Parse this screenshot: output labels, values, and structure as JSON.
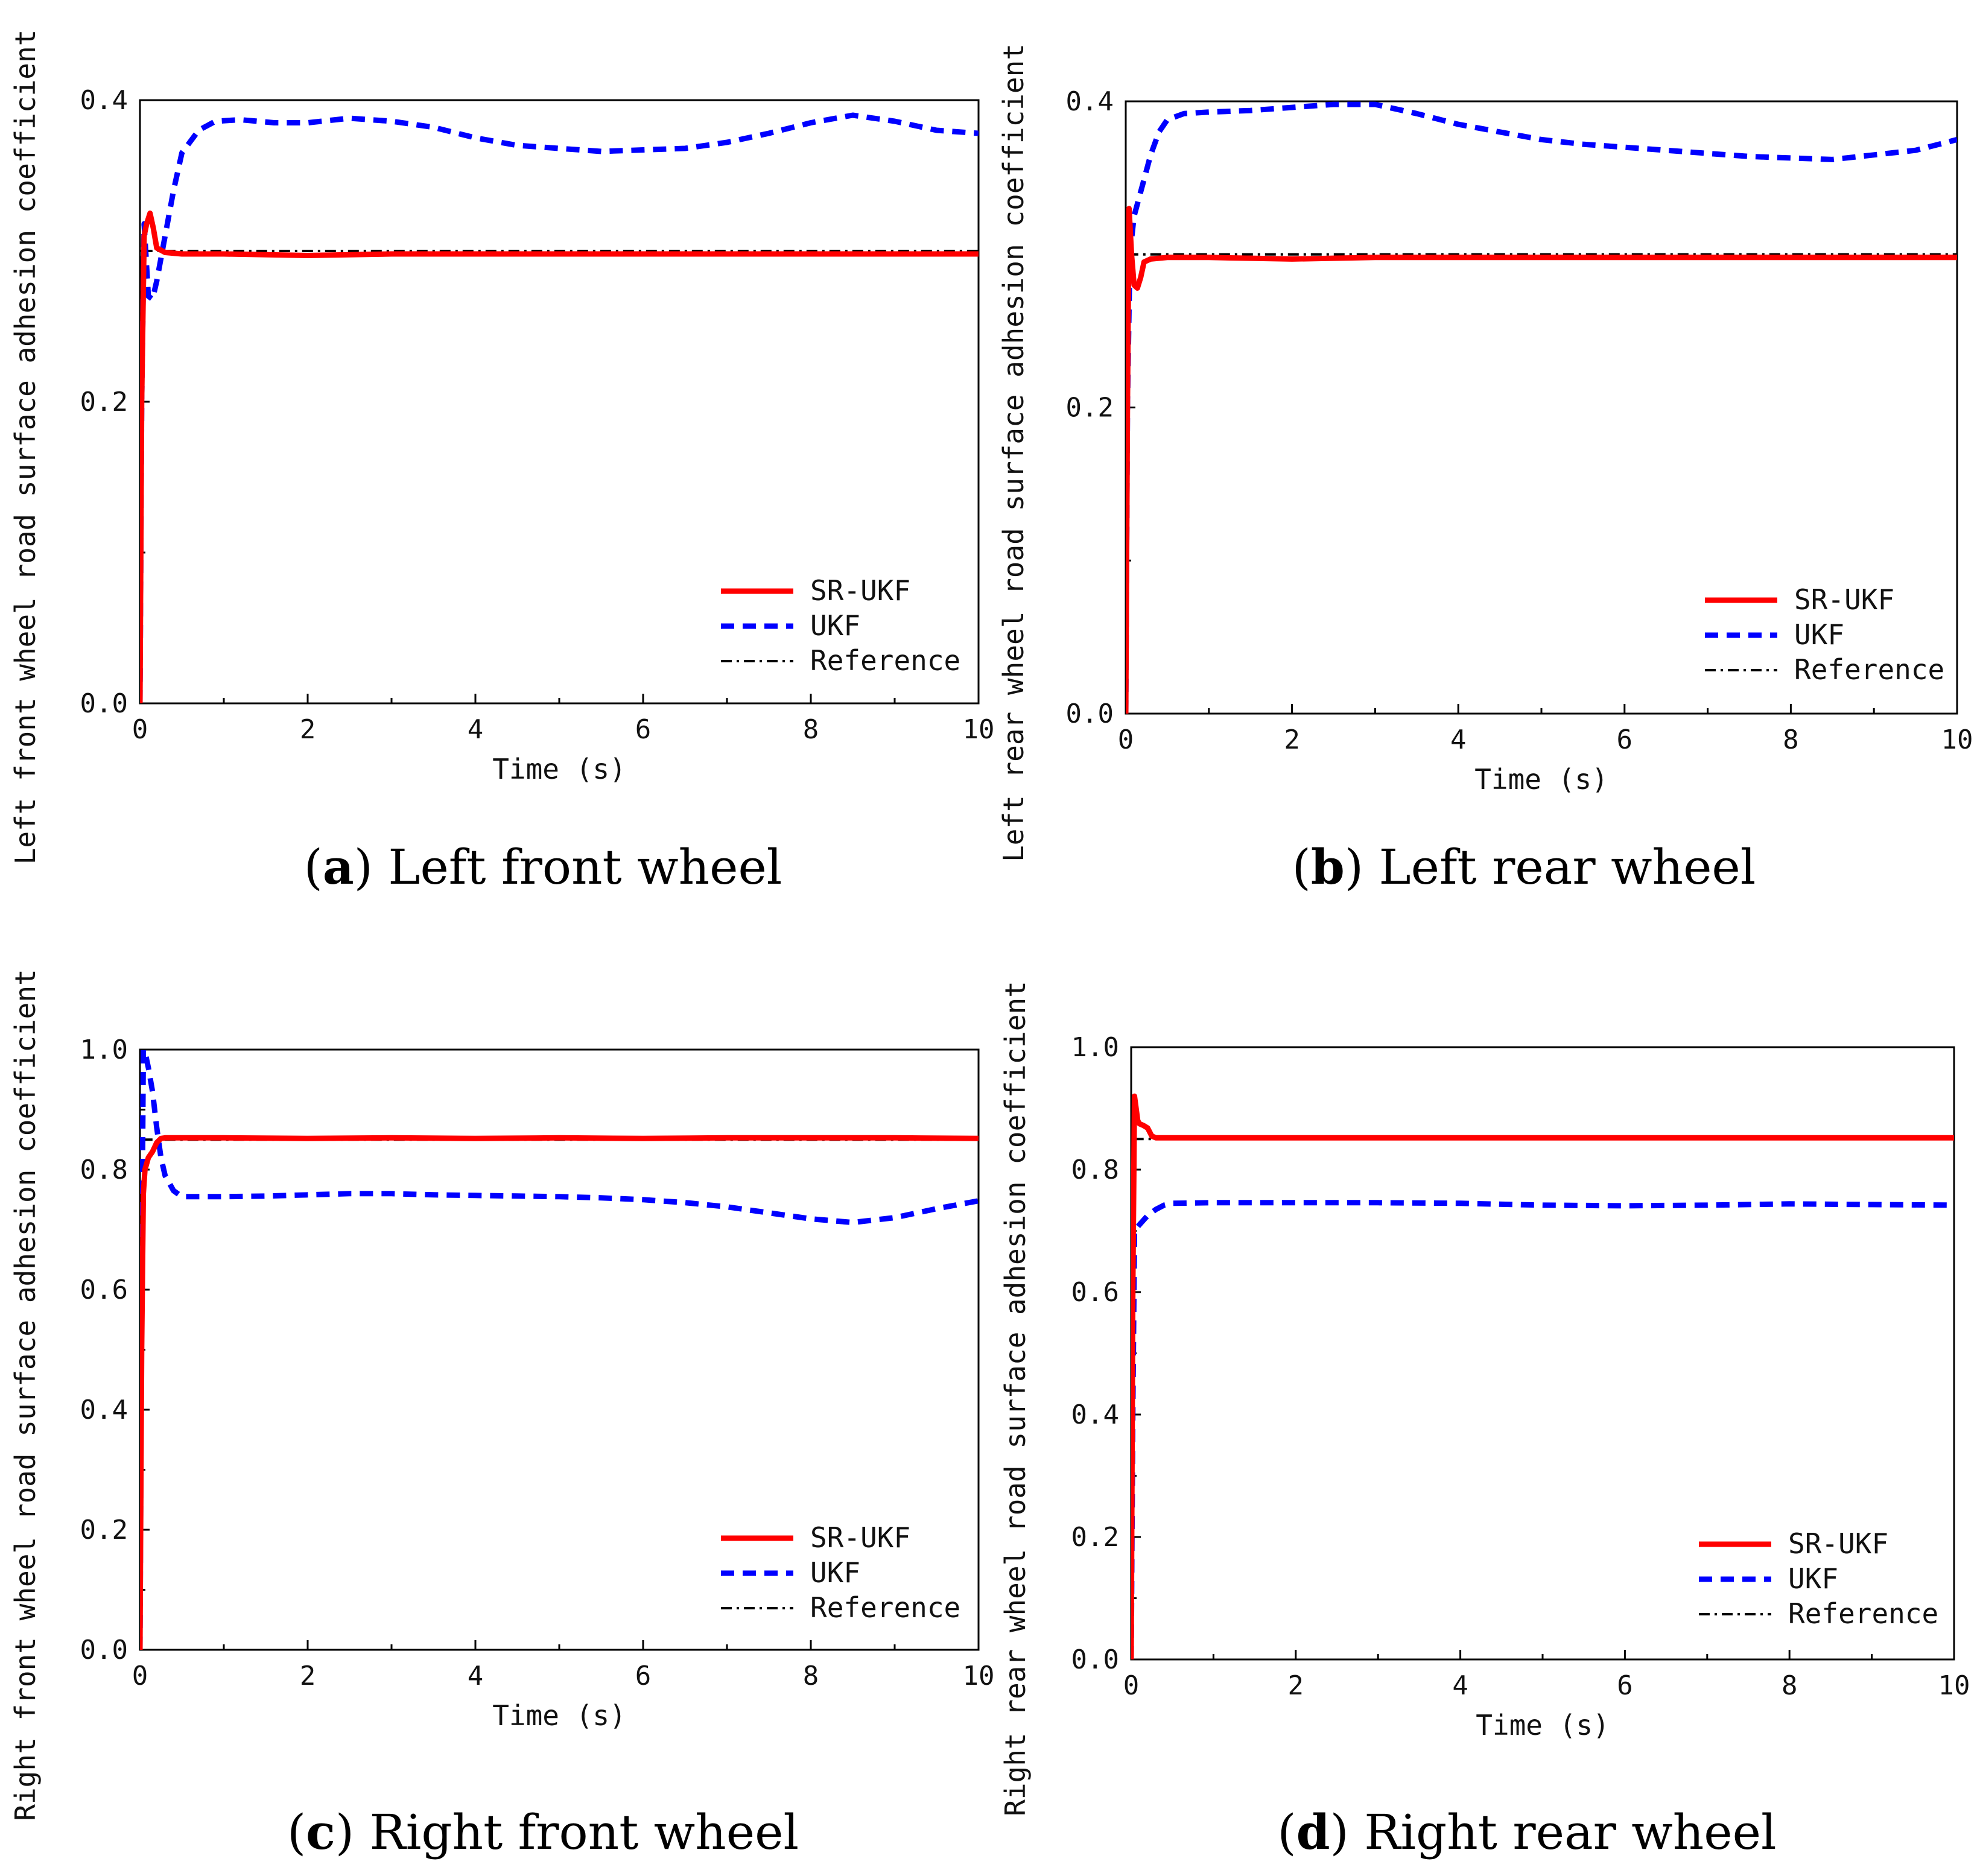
{
  "chart_data": [
    {
      "type": "line",
      "caption_letter": "a",
      "caption_text": "Left front wheel",
      "xlabel": "Time (s)",
      "ylabel": "Left front wheel road surface adhesion coefficient",
      "xlim": [
        0,
        10
      ],
      "ylim": [
        0,
        0.4
      ],
      "xticks": [
        0,
        2,
        4,
        6,
        8,
        10
      ],
      "yticks": [
        0.0,
        0.2,
        0.4
      ],
      "ytick_labels": [
        "0.0",
        "0.2",
        "0.4"
      ],
      "legend": [
        "SR-UKF",
        "UKF",
        "Reference"
      ],
      "legend_position": "bottom-right",
      "series": [
        {
          "name": "SR-UKF",
          "color": "#ff0000",
          "style": "solid",
          "x": [
            0,
            0.02,
            0.05,
            0.08,
            0.12,
            0.16,
            0.2,
            0.3,
            0.5,
            1,
            2,
            3,
            4,
            5,
            6,
            7,
            8,
            9,
            10
          ],
          "y": [
            0,
            0.2,
            0.31,
            0.318,
            0.325,
            0.315,
            0.302,
            0.299,
            0.298,
            0.298,
            0.297,
            0.298,
            0.298,
            0.298,
            0.298,
            0.298,
            0.298,
            0.298,
            0.298
          ]
        },
        {
          "name": "UKF",
          "color": "#0000ff",
          "style": "dotted",
          "x": [
            0,
            0.02,
            0.05,
            0.1,
            0.15,
            0.2,
            0.3,
            0.4,
            0.5,
            0.7,
            0.9,
            1.2,
            1.6,
            2.0,
            2.5,
            3.0,
            3.5,
            4.0,
            4.5,
            5.0,
            5.5,
            6.0,
            6.5,
            7.0,
            7.5,
            8.0,
            8.5,
            9.0,
            9.5,
            10
          ],
          "y": [
            0,
            0.2,
            0.318,
            0.27,
            0.268,
            0.28,
            0.31,
            0.34,
            0.365,
            0.38,
            0.386,
            0.387,
            0.385,
            0.385,
            0.388,
            0.386,
            0.382,
            0.375,
            0.37,
            0.368,
            0.366,
            0.367,
            0.368,
            0.372,
            0.378,
            0.385,
            0.39,
            0.386,
            0.38,
            0.378
          ]
        },
        {
          "name": "Reference",
          "color": "#000000",
          "style": "dashdot",
          "x": [
            0.02,
            10
          ],
          "y": [
            0.3,
            0.3
          ]
        }
      ]
    },
    {
      "type": "line",
      "caption_letter": "b",
      "caption_text": "Left rear wheel",
      "xlabel": "Time (s)",
      "ylabel": "Left rear wheel road surface adhesion coefficient",
      "xlim": [
        0,
        10
      ],
      "ylim": [
        0,
        0.4
      ],
      "xticks": [
        0,
        2,
        4,
        6,
        8,
        10
      ],
      "yticks": [
        0.0,
        0.2,
        0.4
      ],
      "ytick_labels": [
        "0.0",
        "0.2",
        "0.4"
      ],
      "legend": [
        "SR-UKF",
        "UKF",
        "Reference"
      ],
      "legend_position": "bottom-right",
      "series": [
        {
          "name": "SR-UKF",
          "color": "#ff0000",
          "style": "solid",
          "x": [
            0,
            0.02,
            0.04,
            0.07,
            0.1,
            0.14,
            0.18,
            0.22,
            0.3,
            0.5,
            1,
            2,
            3,
            4,
            5,
            6,
            7,
            8,
            9,
            10
          ],
          "y": [
            0,
            0.2,
            0.33,
            0.3,
            0.28,
            0.278,
            0.285,
            0.295,
            0.297,
            0.298,
            0.298,
            0.297,
            0.298,
            0.298,
            0.298,
            0.298,
            0.298,
            0.298,
            0.298,
            0.298
          ]
        },
        {
          "name": "UKF",
          "color": "#0000ff",
          "style": "dotted",
          "x": [
            0,
            0.02,
            0.05,
            0.1,
            0.2,
            0.3,
            0.4,
            0.5,
            0.7,
            1.0,
            1.5,
            2.0,
            2.5,
            3.0,
            3.5,
            4.0,
            4.5,
            5.0,
            5.5,
            6.0,
            6.5,
            7.0,
            7.5,
            8.0,
            8.5,
            9.0,
            9.5,
            10
          ],
          "y": [
            0,
            0.2,
            0.3,
            0.325,
            0.345,
            0.365,
            0.38,
            0.388,
            0.392,
            0.393,
            0.394,
            0.396,
            0.398,
            0.398,
            0.392,
            0.385,
            0.38,
            0.375,
            0.372,
            0.37,
            0.368,
            0.366,
            0.364,
            0.363,
            0.362,
            0.365,
            0.368,
            0.375
          ]
        },
        {
          "name": "Reference",
          "color": "#000000",
          "style": "dashdot",
          "x": [
            0.02,
            10
          ],
          "y": [
            0.3,
            0.3
          ]
        }
      ]
    },
    {
      "type": "line",
      "caption_letter": "c",
      "caption_text": "Right front wheel",
      "xlabel": "Time (s)",
      "ylabel": "Right front wheel road surface adhesion coefficient",
      "xlim": [
        0,
        10
      ],
      "ylim": [
        0,
        1.0
      ],
      "xticks": [
        0,
        2,
        4,
        6,
        8,
        10
      ],
      "yticks": [
        0.0,
        0.2,
        0.4,
        0.6,
        0.8,
        1.0
      ],
      "ytick_labels": [
        "0.0",
        "0.2",
        "0.4",
        "0.6",
        "0.8",
        "1.0"
      ],
      "legend": [
        "SR-UKF",
        "UKF",
        "Reference"
      ],
      "legend_position": "bottom-right",
      "series": [
        {
          "name": "SR-UKF",
          "color": "#ff0000",
          "style": "solid",
          "x": [
            0,
            0.02,
            0.04,
            0.06,
            0.1,
            0.15,
            0.2,
            0.25,
            0.3,
            0.5,
            1,
            2,
            3,
            4,
            5,
            6,
            7,
            8,
            9,
            10
          ],
          "y": [
            0,
            0.5,
            0.76,
            0.8,
            0.82,
            0.83,
            0.845,
            0.852,
            0.853,
            0.853,
            0.853,
            0.852,
            0.853,
            0.852,
            0.853,
            0.852,
            0.853,
            0.853,
            0.853,
            0.852
          ]
        },
        {
          "name": "UKF",
          "color": "#0000ff",
          "style": "dotted",
          "x": [
            0,
            0.02,
            0.04,
            0.07,
            0.1,
            0.15,
            0.2,
            0.25,
            0.3,
            0.4,
            0.5,
            1.0,
            1.5,
            2.0,
            2.5,
            3.0,
            3.5,
            4.0,
            4.5,
            5.0,
            5.5,
            6.0,
            6.5,
            7.0,
            7.5,
            8.0,
            8.5,
            9.0,
            9.5,
            10
          ],
          "y": [
            0,
            0.6,
            1.0,
            0.99,
            0.97,
            0.93,
            0.87,
            0.82,
            0.79,
            0.765,
            0.755,
            0.755,
            0.756,
            0.758,
            0.76,
            0.76,
            0.758,
            0.757,
            0.756,
            0.755,
            0.753,
            0.75,
            0.745,
            0.738,
            0.728,
            0.718,
            0.712,
            0.72,
            0.735,
            0.748
          ]
        },
        {
          "name": "Reference",
          "color": "#000000",
          "style": "dashdot",
          "x": [
            0.02,
            10
          ],
          "y": [
            0.85,
            0.85
          ]
        }
      ]
    },
    {
      "type": "line",
      "caption_letter": "d",
      "caption_text": "Right rear wheel",
      "xlabel": "Time (s)",
      "ylabel": "Right rear wheel road surface adhesion coefficient",
      "xlim": [
        0,
        10
      ],
      "ylim": [
        0,
        1.0
      ],
      "xticks": [
        0,
        2,
        4,
        6,
        8,
        10
      ],
      "yticks": [
        0.0,
        0.2,
        0.4,
        0.6,
        0.8,
        1.0
      ],
      "ytick_labels": [
        "0.0",
        "0.2",
        "0.4",
        "0.6",
        "0.8",
        "1.0"
      ],
      "legend": [
        "SR-UKF",
        "UKF",
        "Reference"
      ],
      "legend_position": "bottom-right",
      "series": [
        {
          "name": "SR-UKF",
          "color": "#ff0000",
          "style": "solid",
          "x": [
            0,
            0.02,
            0.04,
            0.06,
            0.08,
            0.1,
            0.15,
            0.2,
            0.25,
            0.3,
            0.5,
            1,
            2,
            3,
            4,
            5,
            6,
            7,
            8,
            9,
            10
          ],
          "y": [
            0,
            0.6,
            0.92,
            0.9,
            0.88,
            0.875,
            0.872,
            0.868,
            0.855,
            0.852,
            0.852,
            0.852,
            0.852,
            0.852,
            0.852,
            0.852,
            0.852,
            0.852,
            0.852,
            0.852,
            0.852
          ]
        },
        {
          "name": "UKF",
          "color": "#0000ff",
          "style": "dotted",
          "x": [
            0,
            0.02,
            0.04,
            0.07,
            0.1,
            0.2,
            0.3,
            0.4,
            0.5,
            1.0,
            2.0,
            3.0,
            4.0,
            5.0,
            6.0,
            7.0,
            8.0,
            9.0,
            10
          ],
          "y": [
            0,
            0.4,
            0.7,
            0.705,
            0.71,
            0.725,
            0.735,
            0.742,
            0.745,
            0.746,
            0.746,
            0.746,
            0.745,
            0.742,
            0.741,
            0.742,
            0.744,
            0.743,
            0.742
          ]
        },
        {
          "name": "Reference",
          "color": "#000000",
          "style": "dashdot",
          "x": [
            0.02,
            10
          ],
          "y": [
            0.85,
            0.85
          ]
        }
      ]
    }
  ]
}
